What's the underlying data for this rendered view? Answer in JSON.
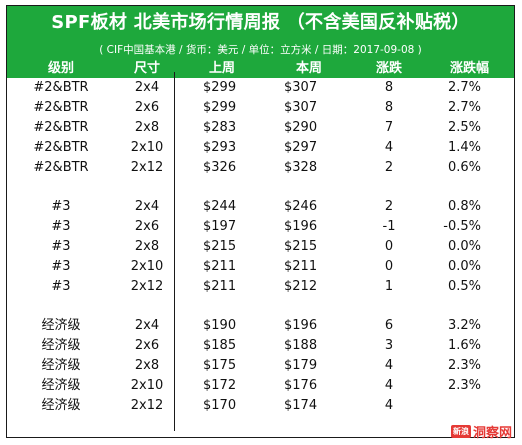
{
  "header": {
    "title": "SPF板材 北美市场行情周报 （不含美国反补贴税）",
    "subtitle": "( CIF中国基本港 / 货币：美元 / 单位：立方米 / 日期：2017-09-08 )"
  },
  "columns": [
    "级别",
    "尺寸",
    "上周",
    "本周",
    "涨跌",
    "涨跌幅"
  ],
  "groups": [
    {
      "rows": [
        [
          "#2&BTR",
          "2x4",
          "$299",
          "$307",
          "8",
          "2.7%"
        ],
        [
          "#2&BTR",
          "2x6",
          "$299",
          "$307",
          "8",
          "2.7%"
        ],
        [
          "#2&BTR",
          "2x8",
          "$283",
          "$290",
          "7",
          "2.5%"
        ],
        [
          "#2&BTR",
          "2x10",
          "$293",
          "$297",
          "4",
          "1.4%"
        ],
        [
          "#2&BTR",
          "2x12",
          "$326",
          "$328",
          "2",
          "0.6%"
        ]
      ]
    },
    {
      "rows": [
        [
          "#3",
          "2x4",
          "$244",
          "$246",
          "2",
          "0.8%"
        ],
        [
          "#3",
          "2x6",
          "$197",
          "$196",
          "-1",
          "-0.5%"
        ],
        [
          "#3",
          "2x8",
          "$215",
          "$215",
          "0",
          "0.0%"
        ],
        [
          "#3",
          "2x10",
          "$211",
          "$211",
          "0",
          "0.0%"
        ],
        [
          "#3",
          "2x12",
          "$211",
          "$212",
          "1",
          "0.5%"
        ]
      ]
    },
    {
      "rows": [
        [
          "经济级",
          "2x4",
          "$190",
          "$196",
          "6",
          "3.2%"
        ],
        [
          "经济级",
          "2x6",
          "$185",
          "$188",
          "3",
          "1.6%"
        ],
        [
          "经济级",
          "2x8",
          "$175",
          "$179",
          "4",
          "2.3%"
        ],
        [
          "经济级",
          "2x10",
          "$172",
          "$176",
          "4",
          "2.3%"
        ],
        [
          "经济级",
          "2x12",
          "$170",
          "$174",
          "4",
          ""
        ]
      ]
    }
  ],
  "watermark": {
    "badge": "新浪",
    "text": "洞察网"
  },
  "colors": {
    "header_bg": "#1ea83c",
    "header_text": "#ffffff"
  }
}
